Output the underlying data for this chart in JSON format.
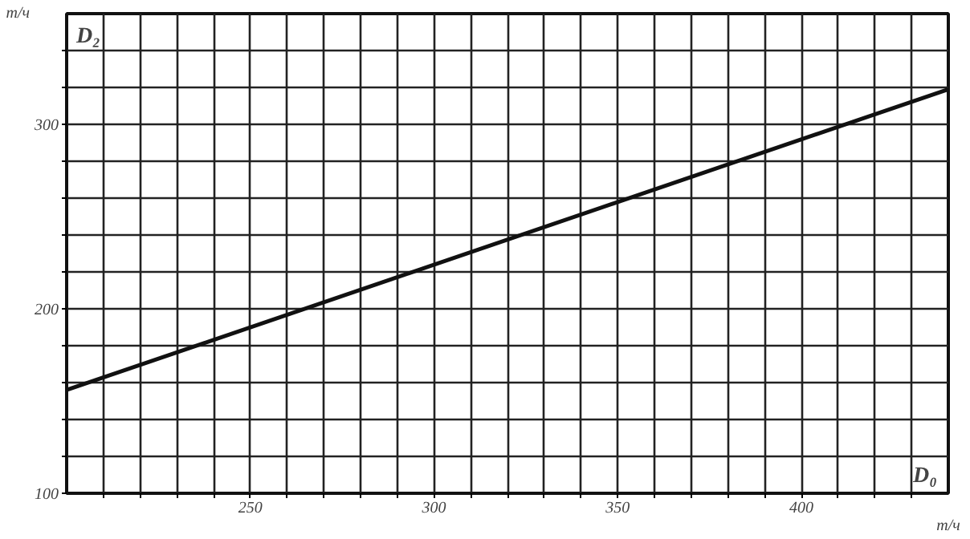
{
  "chart_data": {
    "type": "line",
    "xlabel": "D₀",
    "ylabel": "D₂",
    "annotations": [
      "т/ч",
      "т/ч"
    ],
    "x": [
      200,
      440
    ],
    "series": [
      {
        "color": "#111111",
        "values": [
          156,
          319
        ]
      }
    ],
    "xlim": [
      200,
      440
    ],
    "ylim": [
      100,
      360
    ],
    "xticks": [
      {
        "value": 210,
        "label": null
      },
      {
        "value": 220,
        "label": null
      },
      {
        "value": 230,
        "label": null
      },
      {
        "value": 240,
        "label": null
      },
      250,
      {
        "value": 260,
        "label": null
      },
      {
        "value": 270,
        "label": null
      },
      {
        "value": 280,
        "label": null
      },
      {
        "value": 290,
        "label": null
      },
      300,
      {
        "value": 310,
        "label": null
      },
      {
        "value": 320,
        "label": null
      },
      {
        "value": 330,
        "label": null
      },
      {
        "value": 340,
        "label": null
      },
      350,
      {
        "value": 360,
        "label": null
      },
      {
        "value": 370,
        "label": null
      },
      {
        "value": 380,
        "label": null
      },
      {
        "value": 390,
        "label": null
      },
      400,
      {
        "value": 410,
        "label": null
      },
      {
        "value": 420,
        "label": null
      },
      {
        "value": 430,
        "label": null
      }
    ],
    "yticks": [
      100,
      {
        "value": 120,
        "label": null
      },
      {
        "value": 140,
        "label": null
      },
      {
        "value": 160,
        "label": null
      },
      {
        "value": 180,
        "label": null
      },
      200,
      {
        "value": 220,
        "label": null
      },
      {
        "value": 240,
        "label": null
      },
      {
        "value": 260,
        "label": null
      },
      {
        "value": 280,
        "label": null
      },
      300,
      {
        "value": 320,
        "label": null
      },
      {
        "value": 340,
        "label": null
      }
    ],
    "grid": true,
    "marker": "none",
    "line_style": "solid"
  }
}
